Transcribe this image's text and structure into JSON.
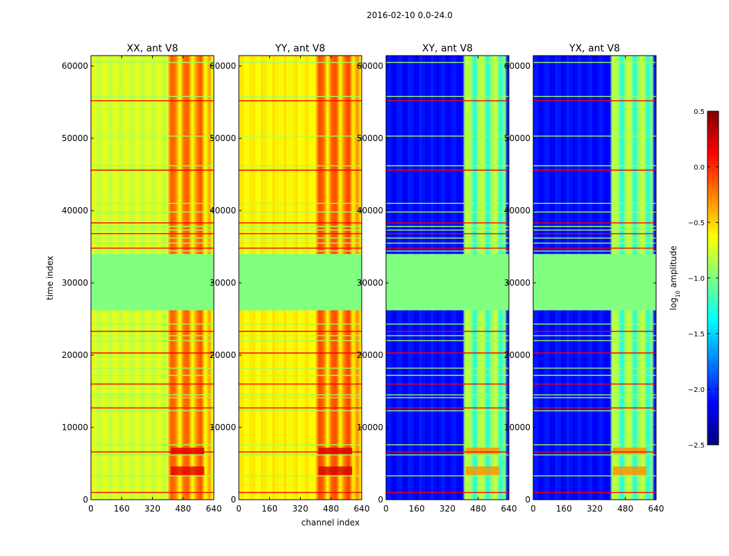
{
  "figure_title": "2016-02-10 0.0-24.0",
  "chart_data": {
    "type": "heatmap",
    "suptitle": "2016-02-10 0.0-24.0",
    "xlabel": "channel index",
    "ylabel": "time index",
    "colorbar_label": "log₁₀ amplitude",
    "colorbar_label_parts": [
      "log",
      "10",
      " amplitude"
    ],
    "colormap": "jet",
    "xlim": [
      0,
      640
    ],
    "ylim": [
      0,
      61440
    ],
    "clim": [
      -2.5,
      0.5
    ],
    "xticks": [
      0,
      160,
      320,
      480,
      640
    ],
    "xtick_labels": [
      "0",
      "160",
      "320",
      "480",
      "640"
    ],
    "yticks": [
      0,
      10000,
      20000,
      30000,
      40000,
      50000,
      60000
    ],
    "ytick_labels": [
      "0",
      "10000",
      "20000",
      "30000",
      "40000",
      "50000",
      "60000"
    ],
    "cbar_ticks": [
      -2.5,
      -2.0,
      -1.5,
      -1.0,
      -0.5,
      0.0,
      0.5
    ],
    "cbar_tick_labels": [
      "−2.5",
      "−2.0",
      "−1.5",
      "−1.0",
      "−0.5",
      "0.0",
      "0.5"
    ],
    "no_data_band": {
      "time_start": 26200,
      "time_end": 34000,
      "value": -1.0
    },
    "rfi_channel_band": [
      410,
      620
    ],
    "flagged_rows": [
      1000,
      3300,
      6200,
      6600,
      7600,
      12300,
      12700,
      14100,
      14500,
      16000,
      17200,
      18200,
      20300,
      22000,
      22700,
      23300,
      24300,
      34400,
      34800,
      35500,
      36200,
      36800,
      37300,
      37800,
      38300,
      39800,
      41000,
      45600,
      46200,
      50300,
      55200,
      55800,
      60500
    ],
    "panels": [
      {
        "title": "XX, ant V8",
        "pol": "XX",
        "base_level": -0.75,
        "rfi_level": -0.35,
        "peak_level": 0.2
      },
      {
        "title": "YY, ant V8",
        "pol": "YY",
        "base_level": -0.6,
        "rfi_level": -0.3,
        "peak_level": 0.25
      },
      {
        "title": "XY, ant V8",
        "pol": "XY",
        "base_level": -2.1,
        "rfi_level": -1.0,
        "peak_level": -0.3
      },
      {
        "title": "YX, ant V8",
        "pol": "YX",
        "base_level": -2.1,
        "rfi_level": -1.0,
        "peak_level": -0.3
      }
    ]
  }
}
